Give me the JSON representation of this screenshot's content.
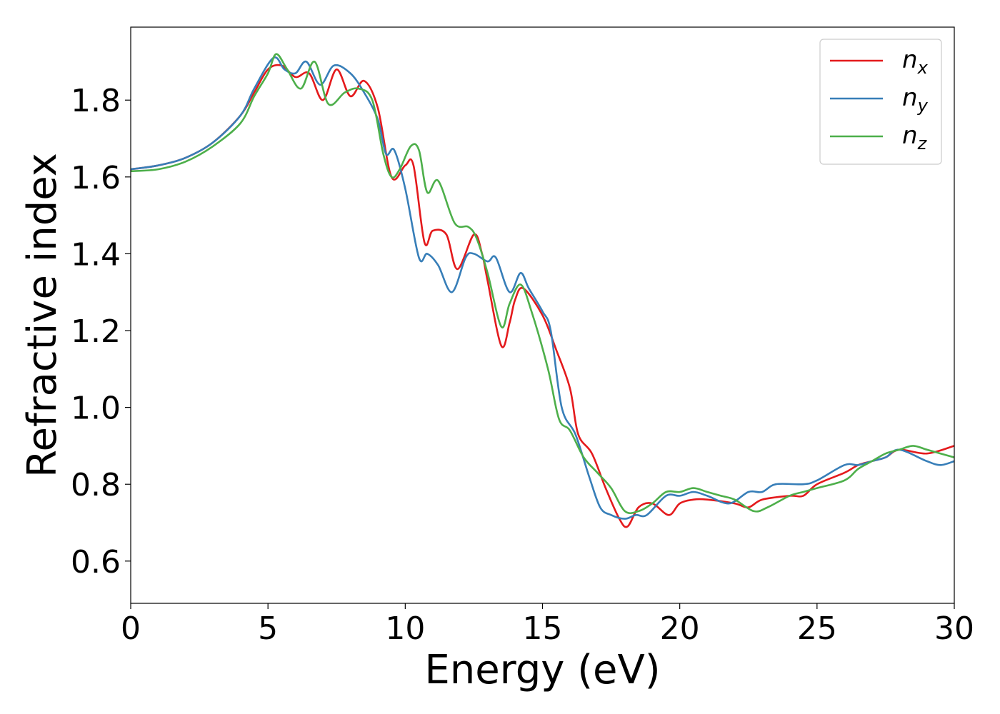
{
  "chart_data": {
    "type": "line",
    "title": "",
    "xlabel": "Energy (eV)",
    "ylabel": "Refractive index",
    "xlim": [
      0,
      30
    ],
    "ylim": [
      0.49,
      1.99
    ],
    "xticks": [
      0,
      5,
      10,
      15,
      20,
      25,
      30
    ],
    "xtick_labels": [
      "0",
      "5",
      "10",
      "15",
      "20",
      "25",
      "30"
    ],
    "yticks": [
      0.6,
      0.8,
      1.0,
      1.2,
      1.4,
      1.6,
      1.8
    ],
    "ytick_labels": [
      "0.6",
      "0.8",
      "1.0",
      "1.2",
      "1.4",
      "1.6",
      "1.8"
    ],
    "grid": false,
    "legend_position": "top-right",
    "series": [
      {
        "name": "n",
        "subscript": "x",
        "color": "#e41a1c",
        "points": [
          [
            0,
            1.62
          ],
          [
            1,
            1.63
          ],
          [
            2,
            1.65
          ],
          [
            3,
            1.69
          ],
          [
            4,
            1.76
          ],
          [
            4.5,
            1.82
          ],
          [
            5,
            1.88
          ],
          [
            5.5,
            1.89
          ],
          [
            6,
            1.86
          ],
          [
            6.5,
            1.87
          ],
          [
            7,
            1.8
          ],
          [
            7.5,
            1.88
          ],
          [
            8,
            1.81
          ],
          [
            8.5,
            1.85
          ],
          [
            9,
            1.78
          ],
          [
            9.5,
            1.6
          ],
          [
            10,
            1.63
          ],
          [
            10.3,
            1.63
          ],
          [
            10.7,
            1.43
          ],
          [
            11,
            1.46
          ],
          [
            11.5,
            1.45
          ],
          [
            11.9,
            1.36
          ],
          [
            12.5,
            1.45
          ],
          [
            12.8,
            1.4
          ],
          [
            13,
            1.33
          ],
          [
            13.5,
            1.16
          ],
          [
            13.8,
            1.22
          ],
          [
            14,
            1.28
          ],
          [
            14.3,
            1.31
          ],
          [
            15,
            1.24
          ],
          [
            15.5,
            1.15
          ],
          [
            16,
            1.05
          ],
          [
            16.3,
            0.93
          ],
          [
            16.8,
            0.88
          ],
          [
            17.3,
            0.79
          ],
          [
            17.8,
            0.71
          ],
          [
            18.1,
            0.69
          ],
          [
            18.5,
            0.74
          ],
          [
            19,
            0.75
          ],
          [
            19.6,
            0.72
          ],
          [
            20,
            0.75
          ],
          [
            20.5,
            0.76
          ],
          [
            21,
            0.76
          ],
          [
            22,
            0.75
          ],
          [
            22.5,
            0.74
          ],
          [
            23,
            0.76
          ],
          [
            24,
            0.77
          ],
          [
            24.5,
            0.77
          ],
          [
            25,
            0.8
          ],
          [
            26,
            0.83
          ],
          [
            26.5,
            0.85
          ],
          [
            27,
            0.86
          ],
          [
            27.5,
            0.87
          ],
          [
            28,
            0.89
          ],
          [
            29,
            0.88
          ],
          [
            30,
            0.9
          ]
        ]
      },
      {
        "name": "n",
        "subscript": "y",
        "color": "#377eb8",
        "points": [
          [
            0,
            1.62
          ],
          [
            1,
            1.63
          ],
          [
            2,
            1.65
          ],
          [
            3,
            1.69
          ],
          [
            4,
            1.76
          ],
          [
            4.5,
            1.83
          ],
          [
            5.2,
            1.91
          ],
          [
            5.6,
            1.88
          ],
          [
            6,
            1.87
          ],
          [
            6.4,
            1.9
          ],
          [
            6.9,
            1.84
          ],
          [
            7.4,
            1.89
          ],
          [
            8,
            1.87
          ],
          [
            8.5,
            1.82
          ],
          [
            9,
            1.75
          ],
          [
            9.3,
            1.66
          ],
          [
            9.6,
            1.67
          ],
          [
            10,
            1.57
          ],
          [
            10.5,
            1.39
          ],
          [
            10.8,
            1.4
          ],
          [
            11.2,
            1.37
          ],
          [
            11.7,
            1.3
          ],
          [
            12.2,
            1.39
          ],
          [
            12.5,
            1.4
          ],
          [
            13,
            1.38
          ],
          [
            13.3,
            1.39
          ],
          [
            13.8,
            1.3
          ],
          [
            14.2,
            1.35
          ],
          [
            14.5,
            1.31
          ],
          [
            15,
            1.25
          ],
          [
            15.3,
            1.2
          ],
          [
            15.7,
            1.0
          ],
          [
            16.2,
            0.93
          ],
          [
            16.7,
            0.82
          ],
          [
            17.1,
            0.74
          ],
          [
            17.5,
            0.72
          ],
          [
            18,
            0.71
          ],
          [
            18.4,
            0.72
          ],
          [
            18.8,
            0.72
          ],
          [
            19.5,
            0.77
          ],
          [
            20,
            0.77
          ],
          [
            20.5,
            0.78
          ],
          [
            21,
            0.77
          ],
          [
            21.8,
            0.75
          ],
          [
            22.5,
            0.78
          ],
          [
            23,
            0.78
          ],
          [
            23.5,
            0.8
          ],
          [
            24.5,
            0.8
          ],
          [
            25,
            0.81
          ],
          [
            26,
            0.85
          ],
          [
            26.5,
            0.85
          ],
          [
            27,
            0.86
          ],
          [
            27.5,
            0.87
          ],
          [
            28,
            0.89
          ],
          [
            29,
            0.86
          ],
          [
            29.5,
            0.85
          ],
          [
            30,
            0.86
          ]
        ]
      },
      {
        "name": "n",
        "subscript": "z",
        "color": "#4daf4a",
        "points": [
          [
            0,
            1.615
          ],
          [
            1,
            1.62
          ],
          [
            2,
            1.64
          ],
          [
            3,
            1.68
          ],
          [
            4,
            1.74
          ],
          [
            4.5,
            1.81
          ],
          [
            5,
            1.87
          ],
          [
            5.3,
            1.92
          ],
          [
            5.7,
            1.88
          ],
          [
            6.2,
            1.83
          ],
          [
            6.7,
            1.9
          ],
          [
            7.2,
            1.79
          ],
          [
            7.8,
            1.82
          ],
          [
            8.3,
            1.83
          ],
          [
            8.8,
            1.8
          ],
          [
            9.2,
            1.66
          ],
          [
            9.5,
            1.6
          ],
          [
            9.8,
            1.62
          ],
          [
            10.2,
            1.68
          ],
          [
            10.5,
            1.67
          ],
          [
            10.8,
            1.56
          ],
          [
            11.2,
            1.59
          ],
          [
            11.8,
            1.48
          ],
          [
            12.3,
            1.47
          ],
          [
            12.6,
            1.44
          ],
          [
            13,
            1.35
          ],
          [
            13.5,
            1.21
          ],
          [
            13.8,
            1.27
          ],
          [
            14.2,
            1.32
          ],
          [
            14.6,
            1.25
          ],
          [
            15.2,
            1.1
          ],
          [
            15.6,
            0.97
          ],
          [
            16,
            0.94
          ],
          [
            16.5,
            0.87
          ],
          [
            17,
            0.83
          ],
          [
            17.5,
            0.79
          ],
          [
            18,
            0.73
          ],
          [
            18.5,
            0.73
          ],
          [
            19,
            0.75
          ],
          [
            19.5,
            0.78
          ],
          [
            20,
            0.78
          ],
          [
            20.5,
            0.79
          ],
          [
            21,
            0.78
          ],
          [
            21.5,
            0.77
          ],
          [
            22,
            0.76
          ],
          [
            22.7,
            0.73
          ],
          [
            23.2,
            0.74
          ],
          [
            24,
            0.77
          ],
          [
            24.5,
            0.78
          ],
          [
            25,
            0.79
          ],
          [
            26,
            0.81
          ],
          [
            26.5,
            0.84
          ],
          [
            27,
            0.86
          ],
          [
            27.5,
            0.88
          ],
          [
            28,
            0.89
          ],
          [
            28.5,
            0.9
          ],
          [
            29,
            0.89
          ],
          [
            29.5,
            0.88
          ],
          [
            30,
            0.87
          ]
        ]
      }
    ]
  }
}
